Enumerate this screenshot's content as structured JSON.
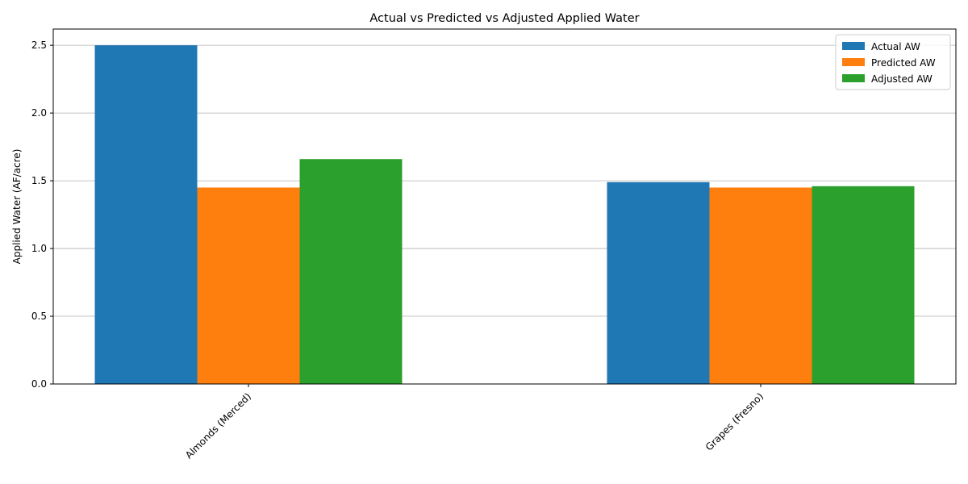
{
  "chart_data": {
    "type": "bar",
    "title": "Actual vs Predicted vs Adjusted Applied Water",
    "xlabel": "",
    "ylabel": "Applied Water (AF/acre)",
    "categories": [
      "Almonds (Merced)",
      "Grapes (Fresno)"
    ],
    "series": [
      {
        "name": "Actual AW",
        "values": [
          2.5,
          1.49
        ],
        "color": "#1f77b4"
      },
      {
        "name": "Predicted AW",
        "values": [
          1.45,
          1.45
        ],
        "color": "#ff7f0e"
      },
      {
        "name": "Adjusted AW",
        "values": [
          1.66,
          1.46
        ],
        "color": "#2ca02c"
      }
    ],
    "ylim": [
      0,
      2.62
    ],
    "yticks": [
      "0.0",
      "0.5",
      "1.0",
      "1.5",
      "2.0",
      "2.5"
    ],
    "grid": "y-axis",
    "legend_position": "top-right",
    "xtick_rotation": -45
  }
}
